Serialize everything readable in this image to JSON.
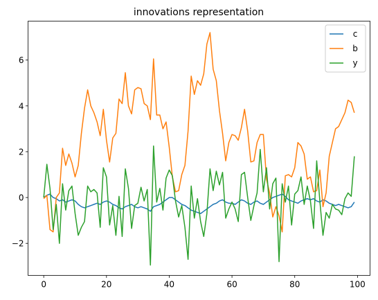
{
  "chart_data": {
    "type": "line",
    "title": "innovations representation",
    "xlabel": "",
    "ylabel": "",
    "xlim": [
      -5,
      104
    ],
    "ylim": [
      -3.4,
      7.7
    ],
    "xticks": [
      0,
      20,
      40,
      60,
      80,
      100
    ],
    "yticks": [
      -2,
      0,
      2,
      4,
      6
    ],
    "grid": false,
    "legend_position": "top-right",
    "series": [
      {
        "name": "c",
        "color": "#1f77b4",
        "x": [
          0,
          1,
          2,
          3,
          4,
          5,
          6,
          7,
          8,
          9,
          10,
          11,
          12,
          13,
          14,
          15,
          16,
          17,
          18,
          19,
          20,
          21,
          22,
          23,
          24,
          25,
          26,
          27,
          28,
          29,
          30,
          31,
          32,
          33,
          34,
          35,
          36,
          37,
          38,
          39,
          40,
          41,
          42,
          43,
          44,
          45,
          46,
          47,
          48,
          49,
          50,
          51,
          52,
          53,
          54,
          55,
          56,
          57,
          58,
          59,
          60,
          61,
          62,
          63,
          64,
          65,
          66,
          67,
          68,
          69,
          70,
          71,
          72,
          73,
          74,
          75,
          76,
          77,
          78,
          79,
          80,
          81,
          82,
          83,
          84,
          85,
          86,
          87,
          88,
          89,
          90,
          91,
          92,
          93,
          94,
          95,
          96,
          97,
          98,
          99
        ],
        "y": [
          0.0,
          0.1,
          0.15,
          0.0,
          -0.05,
          -0.15,
          -0.1,
          -0.2,
          -0.15,
          -0.1,
          -0.15,
          -0.3,
          -0.4,
          -0.45,
          -0.4,
          -0.35,
          -0.3,
          -0.25,
          -0.3,
          -0.2,
          -0.15,
          -0.2,
          -0.3,
          -0.35,
          -0.45,
          -0.5,
          -0.4,
          -0.35,
          -0.3,
          -0.4,
          -0.45,
          -0.4,
          -0.45,
          -0.5,
          -0.6,
          -0.4,
          -0.35,
          -0.3,
          -0.2,
          -0.1,
          0.0,
          0.0,
          -0.1,
          -0.2,
          -0.3,
          -0.35,
          -0.45,
          -0.55,
          -0.6,
          -0.65,
          -0.7,
          -0.6,
          -0.5,
          -0.4,
          -0.3,
          -0.25,
          -0.15,
          -0.1,
          -0.2,
          -0.25,
          -0.25,
          -0.3,
          -0.2,
          -0.1,
          -0.15,
          -0.25,
          -0.3,
          -0.2,
          -0.15,
          -0.25,
          -0.3,
          -0.2,
          -0.1,
          0.0,
          0.05,
          0.1,
          0.15,
          0.05,
          -0.1,
          -0.15,
          -0.2,
          -0.25,
          -0.15,
          -0.1,
          -0.05,
          -0.1,
          -0.05,
          -0.15,
          -0.2,
          -0.1,
          -0.15,
          -0.25,
          -0.3,
          -0.35,
          -0.3,
          -0.35,
          -0.4,
          -0.45,
          -0.4,
          -0.2
        ]
      },
      {
        "name": "b",
        "color": "#ff7f0e",
        "x": [
          0,
          1,
          2,
          3,
          4,
          5,
          6,
          7,
          8,
          9,
          10,
          11,
          12,
          13,
          14,
          15,
          16,
          17,
          18,
          19,
          20,
          21,
          22,
          23,
          24,
          25,
          26,
          27,
          28,
          29,
          30,
          31,
          32,
          33,
          34,
          35,
          36,
          37,
          38,
          39,
          40,
          41,
          42,
          43,
          44,
          45,
          46,
          47,
          48,
          49,
          50,
          51,
          52,
          53,
          54,
          55,
          56,
          57,
          58,
          59,
          60,
          61,
          62,
          63,
          64,
          65,
          66,
          67,
          68,
          69,
          70,
          71,
          72,
          73,
          74,
          75,
          76,
          77,
          78,
          79,
          80,
          81,
          82,
          83,
          84,
          85,
          86,
          87,
          88,
          89,
          90,
          91,
          92,
          93,
          94,
          95,
          96,
          97,
          98,
          99
        ],
        "y": [
          -0.05,
          0.1,
          -1.4,
          -1.5,
          0.0,
          0.2,
          2.15,
          1.4,
          1.9,
          1.5,
          0.9,
          1.4,
          2.8,
          3.9,
          4.7,
          4.0,
          3.7,
          3.3,
          2.7,
          3.85,
          2.5,
          1.55,
          2.6,
          2.8,
          4.3,
          4.1,
          5.45,
          4.0,
          3.65,
          4.7,
          4.8,
          4.75,
          4.1,
          4.0,
          3.4,
          6.05,
          3.6,
          3.6,
          3.0,
          3.3,
          2.2,
          0.9,
          0.25,
          0.3,
          1.0,
          1.4,
          2.9,
          5.3,
          4.5,
          5.1,
          4.9,
          5.4,
          6.7,
          7.2,
          5.6,
          5.1,
          3.8,
          2.8,
          1.6,
          2.4,
          2.75,
          2.7,
          2.5,
          3.05,
          3.85,
          2.9,
          1.55,
          1.6,
          2.4,
          2.75,
          2.75,
          0.8,
          0.2,
          -0.85,
          -0.4,
          -0.8,
          -1.5,
          0.95,
          1.0,
          0.9,
          1.3,
          2.4,
          2.25,
          1.9,
          0.8,
          0.9,
          0.25,
          0.3,
          1.2,
          -0.4,
          0.2,
          1.8,
          2.4,
          3.0,
          3.1,
          3.4,
          3.7,
          4.25,
          4.15,
          3.7
        ]
      },
      {
        "name": "y",
        "color": "#2ca02c",
        "x": [
          0,
          1,
          2,
          3,
          4,
          5,
          6,
          7,
          8,
          9,
          10,
          11,
          12,
          13,
          14,
          15,
          16,
          17,
          18,
          19,
          20,
          21,
          22,
          23,
          24,
          25,
          26,
          27,
          28,
          29,
          30,
          31,
          32,
          33,
          34,
          35,
          36,
          37,
          38,
          39,
          40,
          41,
          42,
          43,
          44,
          45,
          46,
          47,
          48,
          49,
          50,
          51,
          52,
          53,
          54,
          55,
          56,
          57,
          58,
          59,
          60,
          61,
          62,
          63,
          64,
          65,
          66,
          67,
          68,
          69,
          70,
          71,
          72,
          73,
          74,
          75,
          76,
          77,
          78,
          79,
          80,
          81,
          82,
          83,
          84,
          85,
          86,
          87,
          88,
          89,
          90,
          91,
          92,
          93,
          94,
          95,
          96,
          97,
          98,
          99
        ],
        "y": [
          0.0,
          1.45,
          0.4,
          -1.4,
          -0.3,
          -2.0,
          0.6,
          -0.55,
          0.3,
          0.5,
          -0.7,
          -1.65,
          -1.3,
          -1.05,
          0.5,
          0.25,
          0.35,
          0.2,
          -1.3,
          1.3,
          0.9,
          -1.2,
          -0.35,
          -1.65,
          0.05,
          -1.7,
          1.25,
          0.4,
          -1.35,
          -0.35,
          -0.25,
          0.45,
          -0.15,
          0.35,
          -2.95,
          2.25,
          -0.2,
          0.4,
          -0.55,
          0.85,
          1.2,
          0.95,
          -0.15,
          -0.85,
          -0.35,
          -1.3,
          -2.7,
          0.5,
          -0.9,
          -0.05,
          -1.05,
          -1.7,
          -0.7,
          1.25,
          0.3,
          1.15,
          0.55,
          1.1,
          -0.9,
          -0.5,
          -0.2,
          -0.5,
          -1.05,
          1.0,
          1.1,
          0.0,
          -1.0,
          -0.35,
          0.2,
          2.1,
          0.25,
          1.3,
          -0.5,
          0.6,
          0.85,
          -2.8,
          0.6,
          -0.2,
          0.5,
          -1.2,
          0.15,
          0.3,
          0.9,
          -0.3,
          0.5,
          -0.15,
          -1.35,
          1.6,
          -0.15,
          -1.65,
          -0.65,
          -0.9,
          -0.3,
          -0.5,
          -0.55,
          -0.75,
          -0.05,
          0.2,
          0.05,
          1.8
        ]
      }
    ]
  }
}
